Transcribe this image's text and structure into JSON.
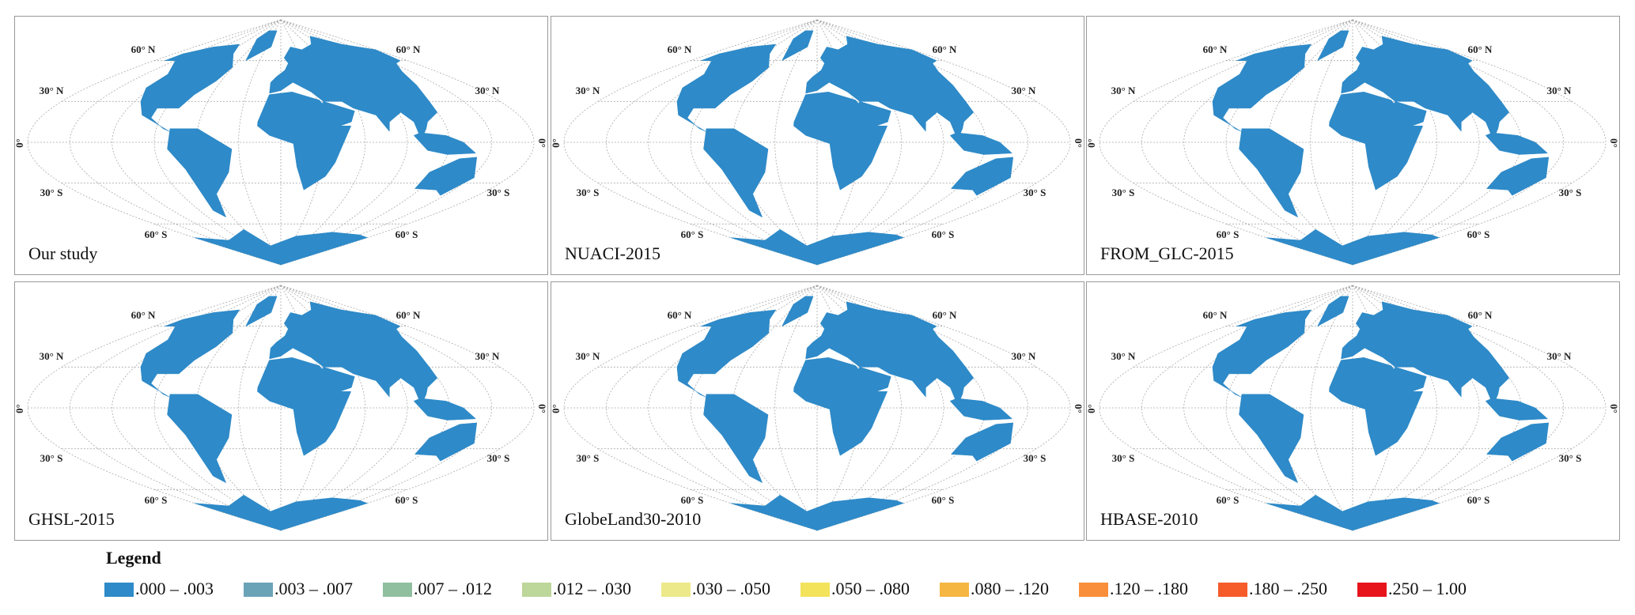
{
  "panels": [
    {
      "name": "Our study"
    },
    {
      "name": "NUACI-2015"
    },
    {
      "name": "FROM_GLC-2015"
    },
    {
      "name": "GHSL-2015"
    },
    {
      "name": "GlobeLand30-2010"
    },
    {
      "name": "HBASE-2010"
    }
  ],
  "graticule_labels": [
    "60° N",
    "30° N",
    "0°",
    "30° S",
    "60° S"
  ],
  "legend": {
    "title": "Legend",
    "items": [
      {
        "label": ".000 – .003",
        "color": "#2e8ac8"
      },
      {
        "label": ".003 – .007",
        "color": "#6aa3b8"
      },
      {
        "label": ".007 – .012",
        "color": "#90bfa0"
      },
      {
        "label": ".012 – .030",
        "color": "#bdd69a"
      },
      {
        "label": ".030 – .050",
        "color": "#ece98a"
      },
      {
        "label": ".050 – .080",
        "color": "#f3e35a"
      },
      {
        "label": ".080 – .120",
        "color": "#f6b642"
      },
      {
        "label": ".120 – .180",
        "color": "#f98f3a"
      },
      {
        "label": ".180 – .250",
        "color": "#f65b2a"
      },
      {
        "label": ".250 – 1.00",
        "color": "#e8141c"
      }
    ]
  }
}
